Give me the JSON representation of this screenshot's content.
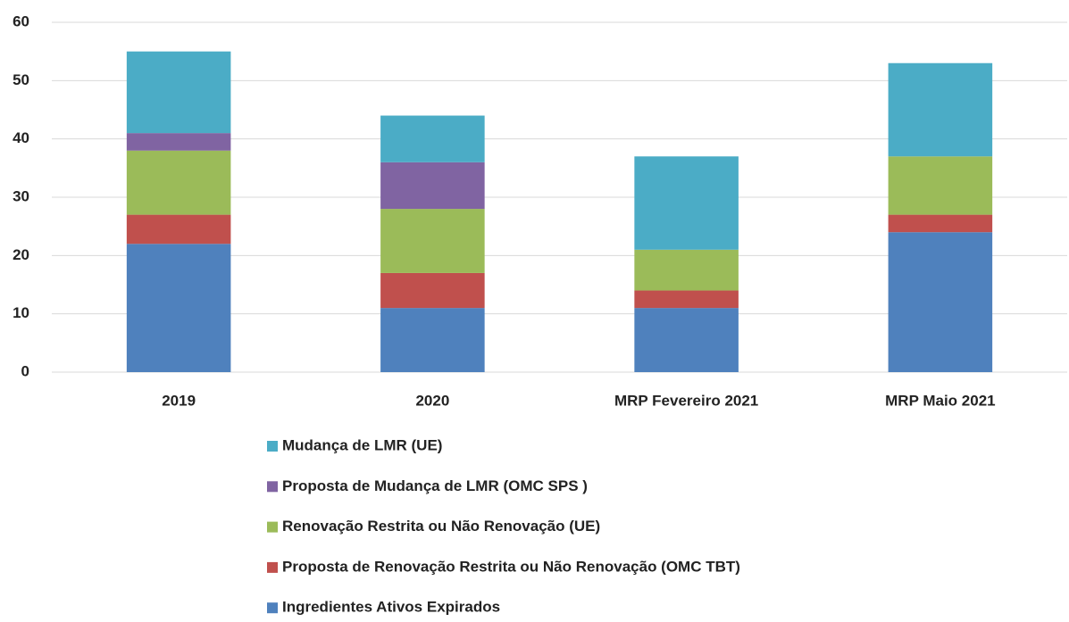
{
  "chart_data": {
    "type": "bar",
    "stacked": true,
    "categories": [
      "2019",
      "2020",
      "MRP Fevereiro 2021",
      "MRP Maio 2021"
    ],
    "series": [
      {
        "name": "Ingredientes Ativos Expirados",
        "color": "#4f81bd",
        "values": [
          22,
          11,
          11,
          24
        ]
      },
      {
        "name": "Proposta de Renovação Restrita ou Não Renovação (OMC TBT)",
        "color": "#c0504d",
        "values": [
          5,
          6,
          3,
          3
        ]
      },
      {
        "name": "Renovação Restrita ou Não Renovação (UE)",
        "color": "#9bbb59",
        "values": [
          11,
          11,
          7,
          10
        ]
      },
      {
        "name": "Proposta de Mudança de LMR (OMC SPS )",
        "color": "#8064a2",
        "values": [
          3,
          8,
          0,
          0
        ]
      },
      {
        "name": "Mudança de LMR (UE)",
        "color": "#4bacc6",
        "values": [
          14,
          8,
          16,
          16
        ]
      }
    ],
    "ylim": [
      0,
      60
    ],
    "yticks": [
      0,
      10,
      20,
      30,
      40,
      50,
      60
    ],
    "grid": true,
    "legend": "bottom"
  }
}
